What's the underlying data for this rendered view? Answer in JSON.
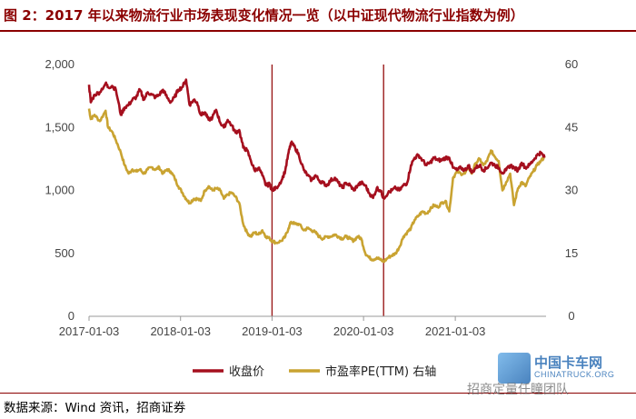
{
  "header": {
    "title": "图 2：2017 年以来物流行业市场表现变化情况一览（以中证现代物流行业指数为例）"
  },
  "footer": {
    "source": "数据来源：Wind 资讯，招商证券"
  },
  "watermark": {
    "line1": "中国卡车网",
    "line2": "CHINATRUCK.ORG",
    "line3": "招商定量任瞳团队"
  },
  "chart_data": {
    "type": "line",
    "title": "",
    "x_tick_labels": [
      "2017-01-03",
      "2018-01-03",
      "2019-01-03",
      "2020-01-03",
      "2021-01-03"
    ],
    "x_range": [
      "2017-01-03",
      "2021-12-31"
    ],
    "y_left": {
      "range": [
        0,
        2000
      ],
      "ticks": [
        "0",
        "500",
        "1,000",
        "1,500",
        "2,000"
      ]
    },
    "y_right": {
      "range": [
        0,
        60
      ],
      "ticks": [
        "0",
        "15",
        "30",
        "45",
        "60"
      ],
      "label": "右轴"
    },
    "vlines": [
      "2019-01-03",
      "2020-03-23"
    ],
    "legend_position": "bottom-center",
    "colors": {
      "close": "#a50f1e",
      "pe": "#c9a331",
      "vline": "#9b1b1b",
      "axis": "#999999"
    },
    "series": [
      {
        "name": "收盘价",
        "axis": "left",
        "points": [
          [
            "2017-01-03",
            1840
          ],
          [
            "2017-01-10",
            1700
          ],
          [
            "2017-01-25",
            1760
          ],
          [
            "2017-02-15",
            1780
          ],
          [
            "2017-03-10",
            1850
          ],
          [
            "2017-03-20",
            1820
          ],
          [
            "2017-04-05",
            1830
          ],
          [
            "2017-04-20",
            1800
          ],
          [
            "2017-05-10",
            1600
          ],
          [
            "2017-05-25",
            1660
          ],
          [
            "2017-06-10",
            1680
          ],
          [
            "2017-06-25",
            1720
          ],
          [
            "2017-07-10",
            1740
          ],
          [
            "2017-07-25",
            1800
          ],
          [
            "2017-08-10",
            1720
          ],
          [
            "2017-08-25",
            1780
          ],
          [
            "2017-09-10",
            1760
          ],
          [
            "2017-09-25",
            1740
          ],
          [
            "2017-10-10",
            1760
          ],
          [
            "2017-10-25",
            1800
          ],
          [
            "2017-11-10",
            1740
          ],
          [
            "2017-11-25",
            1700
          ],
          [
            "2017-12-10",
            1740
          ],
          [
            "2017-12-25",
            1800
          ],
          [
            "2018-01-10",
            1820
          ],
          [
            "2018-01-25",
            1880
          ],
          [
            "2018-02-08",
            1680
          ],
          [
            "2018-02-25",
            1720
          ],
          [
            "2018-03-10",
            1700
          ],
          [
            "2018-03-25",
            1600
          ],
          [
            "2018-04-10",
            1620
          ],
          [
            "2018-04-25",
            1560
          ],
          [
            "2018-05-10",
            1580
          ],
          [
            "2018-05-25",
            1640
          ],
          [
            "2018-06-10",
            1540
          ],
          [
            "2018-06-25",
            1500
          ],
          [
            "2018-07-10",
            1560
          ],
          [
            "2018-07-25",
            1520
          ],
          [
            "2018-08-10",
            1460
          ],
          [
            "2018-08-25",
            1480
          ],
          [
            "2018-09-10",
            1340
          ],
          [
            "2018-09-25",
            1320
          ],
          [
            "2018-10-10",
            1240
          ],
          [
            "2018-10-25",
            1160
          ],
          [
            "2018-11-10",
            1180
          ],
          [
            "2018-11-25",
            1120
          ],
          [
            "2018-12-10",
            1040
          ],
          [
            "2018-12-25",
            1050
          ],
          [
            "2019-01-03",
            1000
          ],
          [
            "2019-01-20",
            1020
          ],
          [
            "2019-02-10",
            1080
          ],
          [
            "2019-02-25",
            1160
          ],
          [
            "2019-03-10",
            1300
          ],
          [
            "2019-03-20",
            1380
          ],
          [
            "2019-04-05",
            1340
          ],
          [
            "2019-04-20",
            1280
          ],
          [
            "2019-05-10",
            1160
          ],
          [
            "2019-05-25",
            1120
          ],
          [
            "2019-06-10",
            1080
          ],
          [
            "2019-06-25",
            1120
          ],
          [
            "2019-07-10",
            1080
          ],
          [
            "2019-07-25",
            1060
          ],
          [
            "2019-08-10",
            1040
          ],
          [
            "2019-08-25",
            1080
          ],
          [
            "2019-09-10",
            1100
          ],
          [
            "2019-09-25",
            1060
          ],
          [
            "2019-10-10",
            1020
          ],
          [
            "2019-10-25",
            1060
          ],
          [
            "2019-11-10",
            1040
          ],
          [
            "2019-11-25",
            1000
          ],
          [
            "2019-12-10",
            1040
          ],
          [
            "2019-12-25",
            1060
          ],
          [
            "2020-01-10",
            1040
          ],
          [
            "2020-01-25",
            980
          ],
          [
            "2020-02-10",
            940
          ],
          [
            "2020-02-25",
            1020
          ],
          [
            "2020-03-10",
            1000
          ],
          [
            "2020-03-23",
            940
          ],
          [
            "2020-04-10",
            980
          ],
          [
            "2020-04-25",
            1000
          ],
          [
            "2020-05-10",
            1020
          ],
          [
            "2020-05-25",
            1000
          ],
          [
            "2020-06-10",
            1040
          ],
          [
            "2020-06-25",
            1060
          ],
          [
            "2020-07-10",
            1200
          ],
          [
            "2020-07-25",
            1260
          ],
          [
            "2020-08-10",
            1280
          ],
          [
            "2020-08-25",
            1240
          ],
          [
            "2020-09-10",
            1200
          ],
          [
            "2020-09-25",
            1220
          ],
          [
            "2020-10-10",
            1260
          ],
          [
            "2020-10-25",
            1240
          ],
          [
            "2020-11-10",
            1240
          ],
          [
            "2020-11-25",
            1260
          ],
          [
            "2020-12-10",
            1260
          ],
          [
            "2020-12-25",
            1180
          ],
          [
            "2021-01-10",
            1160
          ],
          [
            "2021-01-25",
            1180
          ],
          [
            "2021-02-10",
            1160
          ],
          [
            "2021-02-25",
            1200
          ],
          [
            "2021-03-10",
            1140
          ],
          [
            "2021-03-25",
            1180
          ],
          [
            "2021-04-10",
            1200
          ],
          [
            "2021-04-25",
            1160
          ],
          [
            "2021-05-10",
            1180
          ],
          [
            "2021-05-25",
            1220
          ],
          [
            "2021-06-10",
            1200
          ],
          [
            "2021-06-25",
            1180
          ],
          [
            "2021-07-10",
            1140
          ],
          [
            "2021-07-25",
            1160
          ],
          [
            "2021-08-10",
            1200
          ],
          [
            "2021-08-25",
            1180
          ],
          [
            "2021-09-10",
            1160
          ],
          [
            "2021-09-25",
            1220
          ],
          [
            "2021-10-10",
            1180
          ],
          [
            "2021-10-25",
            1200
          ],
          [
            "2021-11-10",
            1240
          ],
          [
            "2021-11-25",
            1280
          ],
          [
            "2021-12-10",
            1300
          ],
          [
            "2021-12-25",
            1260
          ]
        ]
      },
      {
        "name": "市盈率PE(TTM) 右轴",
        "axis": "right",
        "points": [
          [
            "2017-01-03",
            49.5
          ],
          [
            "2017-01-10",
            47
          ],
          [
            "2017-01-25",
            48
          ],
          [
            "2017-02-15",
            46.5
          ],
          [
            "2017-03-10",
            49
          ],
          [
            "2017-03-20",
            45
          ],
          [
            "2017-04-05",
            44
          ],
          [
            "2017-04-20",
            42
          ],
          [
            "2017-05-10",
            39
          ],
          [
            "2017-05-25",
            36
          ],
          [
            "2017-06-10",
            34
          ],
          [
            "2017-06-25",
            35
          ],
          [
            "2017-07-10",
            34.5
          ],
          [
            "2017-07-25",
            35
          ],
          [
            "2017-08-10",
            34
          ],
          [
            "2017-08-25",
            35
          ],
          [
            "2017-09-10",
            35.5
          ],
          [
            "2017-09-25",
            35
          ],
          [
            "2017-10-10",
            35.5
          ],
          [
            "2017-10-25",
            34
          ],
          [
            "2017-11-10",
            35
          ],
          [
            "2017-11-25",
            34.5
          ],
          [
            "2017-12-10",
            33
          ],
          [
            "2017-12-25",
            31
          ],
          [
            "2018-01-10",
            29.5
          ],
          [
            "2018-01-25",
            28
          ],
          [
            "2018-02-08",
            27
          ],
          [
            "2018-02-25",
            28
          ],
          [
            "2018-03-10",
            28
          ],
          [
            "2018-03-25",
            27.5
          ],
          [
            "2018-04-10",
            30
          ],
          [
            "2018-04-25",
            31
          ],
          [
            "2018-05-10",
            30
          ],
          [
            "2018-05-25",
            30.5
          ],
          [
            "2018-06-10",
            30
          ],
          [
            "2018-06-25",
            28
          ],
          [
            "2018-07-10",
            29
          ],
          [
            "2018-07-25",
            29.5
          ],
          [
            "2018-08-10",
            28.5
          ],
          [
            "2018-08-25",
            27
          ],
          [
            "2018-09-10",
            22
          ],
          [
            "2018-09-25",
            20
          ],
          [
            "2018-10-10",
            19
          ],
          [
            "2018-10-25",
            20
          ],
          [
            "2018-11-10",
            19.5
          ],
          [
            "2018-11-25",
            20.5
          ],
          [
            "2018-12-10",
            19
          ],
          [
            "2018-12-25",
            18.5
          ],
          [
            "2019-01-03",
            18
          ],
          [
            "2019-01-20",
            17.5
          ],
          [
            "2019-02-10",
            18
          ],
          [
            "2019-02-25",
            19
          ],
          [
            "2019-03-10",
            21
          ],
          [
            "2019-03-20",
            22.5
          ],
          [
            "2019-04-05",
            22
          ],
          [
            "2019-04-20",
            22
          ],
          [
            "2019-05-10",
            20.5
          ],
          [
            "2019-05-25",
            21
          ],
          [
            "2019-06-10",
            20.5
          ],
          [
            "2019-06-25",
            20
          ],
          [
            "2019-07-10",
            19
          ],
          [
            "2019-07-25",
            18.5
          ],
          [
            "2019-08-10",
            19
          ],
          [
            "2019-08-25",
            19
          ],
          [
            "2019-09-10",
            19.5
          ],
          [
            "2019-09-25",
            19
          ],
          [
            "2019-10-10",
            18.5
          ],
          [
            "2019-10-25",
            19
          ],
          [
            "2019-11-10",
            18.5
          ],
          [
            "2019-11-25",
            18
          ],
          [
            "2019-12-10",
            19
          ],
          [
            "2019-12-25",
            18.5
          ],
          [
            "2020-01-10",
            15
          ],
          [
            "2020-01-25",
            14
          ],
          [
            "2020-02-10",
            13.5
          ],
          [
            "2020-02-25",
            14
          ],
          [
            "2020-03-10",
            13.5
          ],
          [
            "2020-03-23",
            13
          ],
          [
            "2020-04-10",
            14
          ],
          [
            "2020-04-25",
            14.5
          ],
          [
            "2020-05-10",
            15
          ],
          [
            "2020-05-25",
            16.5
          ],
          [
            "2020-06-10",
            19
          ],
          [
            "2020-06-25",
            20
          ],
          [
            "2020-07-10",
            21
          ],
          [
            "2020-07-25",
            23
          ],
          [
            "2020-08-10",
            24
          ],
          [
            "2020-08-25",
            25
          ],
          [
            "2020-09-10",
            24.5
          ],
          [
            "2020-09-25",
            25.5
          ],
          [
            "2020-10-10",
            26.5
          ],
          [
            "2020-10-25",
            26
          ],
          [
            "2020-11-10",
            27
          ],
          [
            "2020-11-25",
            27.5
          ],
          [
            "2020-12-10",
            25
          ],
          [
            "2020-12-25",
            33
          ],
          [
            "2021-01-10",
            34.5
          ],
          [
            "2021-01-25",
            34
          ],
          [
            "2021-02-10",
            34
          ],
          [
            "2021-02-25",
            35.5
          ],
          [
            "2021-03-10",
            34
          ],
          [
            "2021-03-25",
            36.5
          ],
          [
            "2021-04-10",
            37.5
          ],
          [
            "2021-04-25",
            36
          ],
          [
            "2021-05-10",
            37
          ],
          [
            "2021-05-25",
            39.5
          ],
          [
            "2021-06-10",
            38
          ],
          [
            "2021-06-25",
            37
          ],
          [
            "2021-07-10",
            30
          ],
          [
            "2021-07-25",
            32
          ],
          [
            "2021-08-10",
            34
          ],
          [
            "2021-08-25",
            26.5
          ],
          [
            "2021-09-10",
            30.5
          ],
          [
            "2021-09-25",
            32
          ],
          [
            "2021-10-10",
            31
          ],
          [
            "2021-10-25",
            33
          ],
          [
            "2021-11-10",
            34.5
          ],
          [
            "2021-11-25",
            36
          ],
          [
            "2021-12-10",
            37
          ],
          [
            "2021-12-25",
            38
          ]
        ]
      }
    ]
  }
}
